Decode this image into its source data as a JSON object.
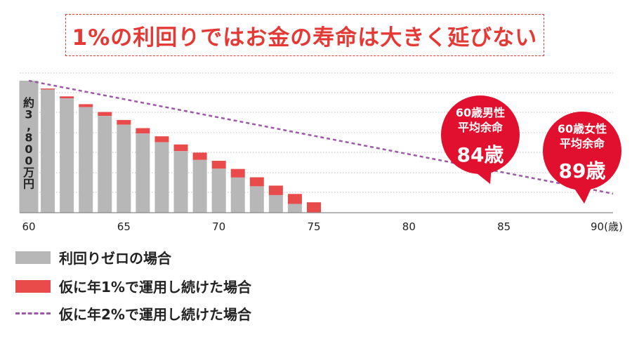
{
  "title": "1%の利回りではお金の寿命は大きく延びない",
  "colors": {
    "gray": "#b7b7b7",
    "red": "#e94b4b",
    "dashed": "#9c5aa6",
    "accent": "#e53935",
    "bubble": "#e0102e"
  },
  "chart_data": {
    "type": "bar",
    "x": [
      60,
      61,
      62,
      63,
      64,
      65,
      66,
      67,
      68,
      69,
      70,
      71,
      72,
      73,
      74,
      75,
      76,
      77,
      78,
      79,
      80,
      81,
      82,
      83,
      84,
      85,
      86,
      87
    ],
    "x_ticks": [
      "60",
      "65",
      "70",
      "75",
      "80",
      "85",
      "90(歳)"
    ],
    "xlim": [
      60,
      90
    ],
    "ylim": [
      0,
      3800
    ],
    "y_label": "約3,800万円",
    "grid": true,
    "series": [
      {
        "name": "利回りゼロの場合",
        "type": "bar",
        "values": [
          3800,
          3547,
          3293,
          3040,
          2787,
          2533,
          2280,
          2027,
          1773,
          1520,
          1267,
          1013,
          760,
          507,
          253,
          0,
          0,
          0,
          0,
          0,
          0,
          0,
          0,
          0,
          0,
          0,
          0,
          0
        ]
      },
      {
        "name": "仮に年1%で運用し続けた場合",
        "type": "bar",
        "values": [
          3800,
          3575,
          3350,
          3125,
          2900,
          2670,
          2435,
          2200,
          1965,
          1730,
          1495,
          1260,
          1020,
          780,
          540,
          300,
          0,
          0,
          0,
          0,
          0,
          0,
          0,
          0,
          0,
          0,
          0,
          0
        ]
      },
      {
        "name": "仮に年2%で運用し続けた場合",
        "type": "line",
        "style": "dashed",
        "points": [
          [
            60,
            3800
          ],
          [
            90,
            650
          ]
        ]
      }
    ],
    "annotations": [
      {
        "lines": [
          "60歳男性",
          "平均余命"
        ],
        "value": "84歳",
        "x": 84
      },
      {
        "lines": [
          "60歳女性",
          "平均余命"
        ],
        "value": "89歳",
        "x": 89
      }
    ]
  }
}
